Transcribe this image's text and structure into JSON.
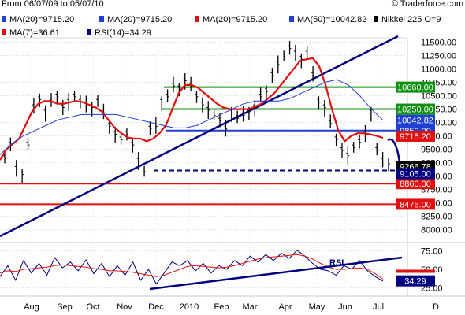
{
  "header": {
    "date_range": "From 06/07/09 to 05/07/10",
    "copyright": "© Traderforce.com"
  },
  "legend": [
    {
      "label": "MA(20)=9715.20",
      "color": "#1f3fd1"
    },
    {
      "label": "MA(20)=9715.20",
      "color": "#1f3fd1"
    },
    {
      "label": "MA(20)=9715.20",
      "color": "#e01010"
    },
    {
      "label": "MA(50)=10042.82",
      "color": "#1f3fd1"
    },
    {
      "label": "Nikkei 225 O=9",
      "color": "#000000"
    },
    {
      "label": "MA(7)=36.61",
      "color": "#e01010"
    },
    {
      "label": "RSI(14)=34.29",
      "color": "#000080"
    }
  ],
  "chart_data": [
    {
      "type": "line",
      "title": "Nikkei 225",
      "x_ticks": [
        "Aug",
        "Sep",
        "Oct",
        "Nov",
        "Dec",
        "2010",
        "Feb",
        "Mar",
        "Apr",
        "May",
        "Jun",
        "Jul",
        "D"
      ],
      "y_ticks": [
        8000,
        8250,
        8500,
        8750,
        9000,
        9250,
        9500,
        9750,
        10000,
        10250,
        10500,
        10750,
        11000,
        11250,
        11500
      ],
      "ylim": [
        7820,
        11580
      ],
      "series": [
        {
          "name": "Nikkei 225",
          "color": "#000000",
          "values": [
            9350,
            9600,
            9150,
            9050,
            9600,
            10300,
            10450,
            10200,
            10400,
            10500,
            10300,
            10400,
            10500,
            10400,
            10350,
            10300,
            10400,
            10200,
            9950,
            9800,
            9700,
            9800,
            9600,
            9300,
            9100,
            9900,
            9950,
            10400,
            10500,
            10700,
            10650,
            10800,
            10700,
            10500,
            10350,
            10250,
            10150,
            10050,
            9900,
            10200,
            10100,
            10150,
            10200,
            10300,
            10500,
            10600,
            10900,
            11100,
            11250,
            11400,
            11300,
            11200,
            11300,
            10900,
            10400,
            10300,
            10000,
            9700,
            9500,
            9400,
            9550,
            9650,
            9800,
            10200,
            9500,
            9300,
            9250
          ]
        },
        {
          "name": "MA(20)",
          "color": "#e01010",
          "values": [
            9300,
            9500,
            9600,
            9700,
            9950,
            10200,
            10350,
            10400,
            10400,
            10350,
            10350,
            10380,
            10400,
            10380,
            10330,
            10280,
            10200,
            10050,
            9900,
            9800,
            9720,
            9700,
            9700,
            9650,
            9700,
            9800,
            9950,
            10250,
            10550,
            10700,
            10700,
            10650,
            10550,
            10450,
            10350,
            10280,
            10250,
            10250,
            10250,
            10250,
            10300,
            10350,
            10450,
            10550,
            10700,
            10850,
            11000,
            11150,
            11180,
            11200,
            11050,
            10700,
            10250,
            9850,
            9650,
            9750,
            9800,
            9800,
            9780,
            9750,
            9715
          ]
        },
        {
          "name": "MA(50)",
          "color": "#1f3fd1",
          "values": [
            9400,
            9600,
            9750,
            9850,
            9950,
            10050,
            10100,
            10150,
            10150,
            10150,
            10150,
            10100,
            10050,
            10000,
            9950,
            9900,
            9900,
            9950,
            10050,
            10150,
            10250,
            10350,
            10400,
            10400,
            10400,
            10450,
            10550,
            10650,
            10750,
            10800,
            10700,
            10500,
            10250,
            10042
          ]
        }
      ],
      "reference_lines": [
        {
          "label": "10660.00",
          "value": 10660,
          "color": "#109010"
        },
        {
          "label": "10250.00",
          "value": 10250,
          "color": "#109010"
        },
        {
          "label": "9850.00",
          "value": 9850,
          "color": "#1f3fd1"
        },
        {
          "label": "8860.00",
          "value": 8860,
          "color": "#e01010"
        },
        {
          "label": "8475.00",
          "value": 8475,
          "color": "#e01010"
        }
      ],
      "price_tags": [
        {
          "label": "10042.82",
          "value": 10042.82,
          "color": "#1f3fd1"
        },
        {
          "label": "9715.20",
          "value": 9715.2,
          "color": "#e01010"
        },
        {
          "label": "9266.78",
          "value": 9266.78,
          "color": "#000000"
        },
        {
          "label": "9105.00",
          "value": 9105,
          "color": "#000080"
        }
      ]
    },
    {
      "type": "line",
      "title": "RSI(14)",
      "annotation": "RSI",
      "y_ticks": [
        25,
        50,
        75
      ],
      "ylim": [
        20,
        80
      ],
      "series": [
        {
          "name": "RSI(14)",
          "color": "#000080",
          "values": [
            40,
            55,
            35,
            62,
            45,
            58,
            42,
            66,
            52,
            60,
            48,
            63,
            44,
            58,
            40,
            55,
            42,
            60,
            35,
            50,
            30,
            45,
            60,
            55,
            62,
            48,
            58,
            45,
            55,
            50,
            62,
            55,
            68,
            60,
            70,
            62,
            72,
            65,
            76,
            68,
            58,
            50,
            48,
            42,
            55,
            50,
            62,
            48,
            40,
            34
          ]
        },
        {
          "name": "MA(7)",
          "color": "#e01010",
          "values": [
            45,
            48,
            47,
            50,
            51,
            52,
            53,
            55,
            56,
            55,
            54,
            53,
            51,
            50,
            48,
            48,
            47,
            46,
            44,
            42,
            40,
            42,
            46,
            50,
            54,
            55,
            54,
            53,
            52,
            53,
            55,
            58,
            61,
            64,
            66,
            67,
            68,
            69,
            70,
            68,
            64,
            58,
            53,
            50,
            50,
            51,
            52,
            50,
            44,
            36.61
          ]
        }
      ],
      "price_tags": [
        {
          "label": "34.29",
          "value": 34.29,
          "color": "#000080"
        }
      ]
    }
  ]
}
